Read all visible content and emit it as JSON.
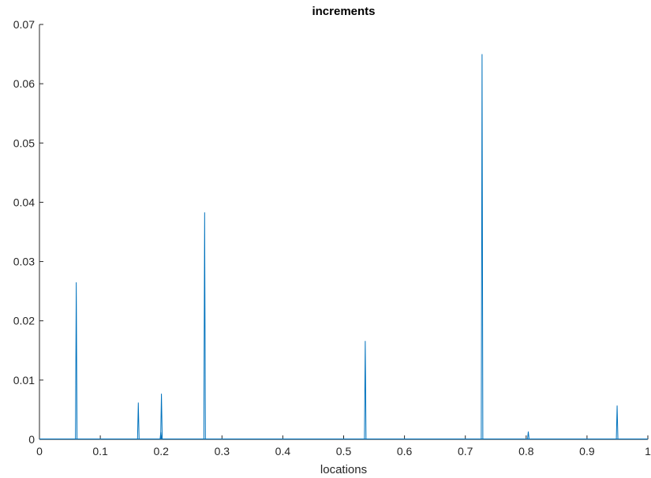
{
  "chart_data": {
    "type": "line",
    "title": "increments",
    "xlabel": "locations",
    "ylabel": "",
    "xlim": [
      0,
      1
    ],
    "ylim": [
      0,
      0.07
    ],
    "x_ticks": [
      "0",
      "0.1",
      "0.2",
      "0.3",
      "0.4",
      "0.5",
      "0.6",
      "0.7",
      "0.8",
      "0.9",
      "1"
    ],
    "y_ticks": [
      "0",
      "0.01",
      "0.02",
      "0.03",
      "0.04",
      "0.05",
      "0.06",
      "0.07"
    ],
    "grid": false,
    "series": [
      {
        "color": "#0072BD",
        "spikes": [
          {
            "x": 0.0605,
            "y": 0.0265
          },
          {
            "x": 0.1625,
            "y": 0.0062
          },
          {
            "x": 0.2005,
            "y": 0.0077
          },
          {
            "x": 0.1995,
            "y": 0.0012
          },
          {
            "x": 0.2715,
            "y": 0.0383
          },
          {
            "x": 0.5355,
            "y": 0.0166
          },
          {
            "x": 0.7275,
            "y": 0.065
          },
          {
            "x": 0.8035,
            "y": 0.0013
          },
          {
            "x": 0.9495,
            "y": 0.0057
          }
        ]
      }
    ]
  }
}
